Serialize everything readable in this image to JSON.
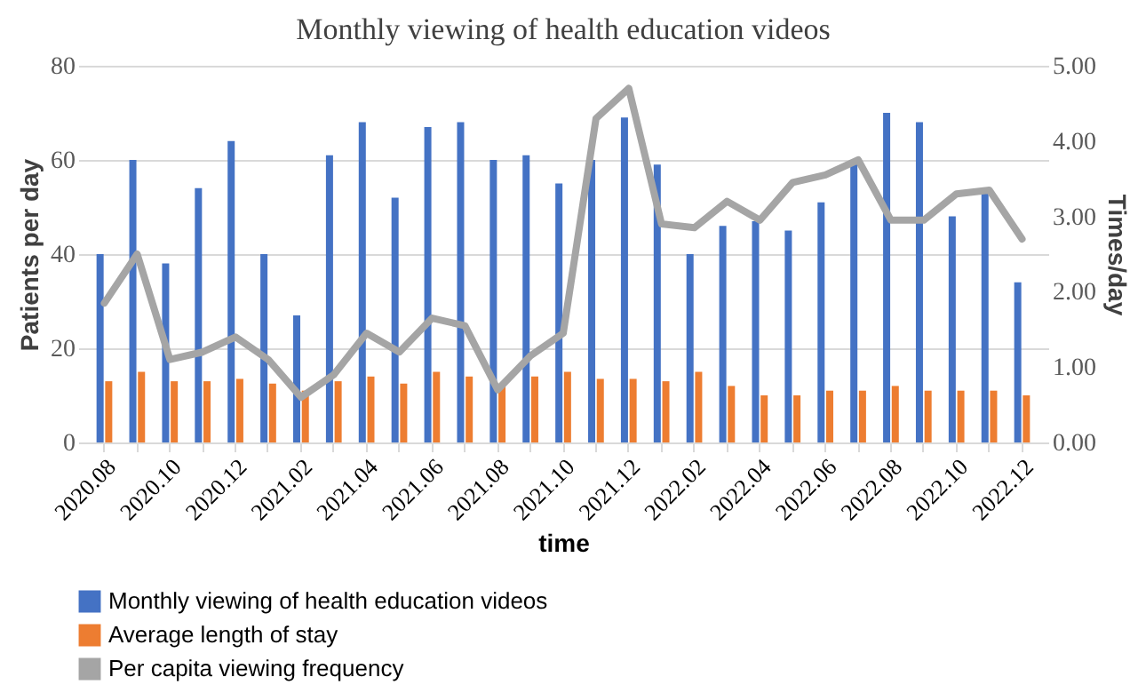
{
  "chart_data": {
    "type": "bar",
    "title": "Monthly viewing of health education videos",
    "xlabel": "time",
    "ylabel": "Patients per day",
    "y2label": "Times/day",
    "categories": [
      "2020.08",
      null,
      "2020.10",
      null,
      "2020.12",
      null,
      "2021.02",
      null,
      "2021.04",
      null,
      "2021.06",
      null,
      "2021.08",
      null,
      "2021.10",
      null,
      "2021.12",
      null,
      "2022.02",
      null,
      "2022.04",
      null,
      "2022.06",
      null,
      "2022.08",
      null,
      "2022.10",
      null,
      "2022.12"
    ],
    "series": [
      {
        "name": "Monthly viewing of health education videos",
        "color": "#4472c4",
        "values": [
          40,
          60,
          38,
          54,
          64,
          40,
          27,
          61,
          68,
          52,
          67,
          68,
          60,
          61,
          55,
          60,
          69,
          59,
          40,
          46,
          47,
          45,
          51,
          60,
          70,
          68,
          48,
          53,
          34
        ]
      },
      {
        "name": "Average length of stay",
        "color": "#ed7d31",
        "values": [
          13,
          15,
          13,
          13,
          13.5,
          12.5,
          11,
          13,
          14,
          12.5,
          15,
          14,
          12,
          14,
          15,
          13.5,
          13.5,
          13,
          15,
          12,
          10,
          10,
          11,
          11,
          12,
          11,
          11,
          11,
          10
        ]
      },
      {
        "name": "Per capita viewing frequency",
        "type": "line",
        "axis": "y2",
        "color": "#a5a5a5",
        "values": [
          1.85,
          2.5,
          1.1,
          1.2,
          1.4,
          1.1,
          0.6,
          0.9,
          1.45,
          1.2,
          1.65,
          1.55,
          0.7,
          1.15,
          1.45,
          4.3,
          4.7,
          2.9,
          2.85,
          3.2,
          2.95,
          3.45,
          3.55,
          3.75,
          2.95,
          2.95,
          3.3,
          3.35,
          2.7
        ]
      }
    ],
    "ylim": [
      0,
      80
    ],
    "yticks": [
      0,
      20,
      40,
      60,
      80
    ],
    "y2lim": [
      0,
      5
    ],
    "y2ticks": [
      {
        "value": 0,
        "label": "0.00"
      },
      {
        "value": 1,
        "label": "1.00"
      },
      {
        "value": 2,
        "label": "2.00"
      },
      {
        "value": 3,
        "label": "3.00"
      },
      {
        "value": 4,
        "label": "4.00"
      },
      {
        "value": 5,
        "label": "5.00"
      }
    ],
    "grid": "y",
    "legend": "bottom",
    "marker": "none",
    "line_style": "solid"
  }
}
